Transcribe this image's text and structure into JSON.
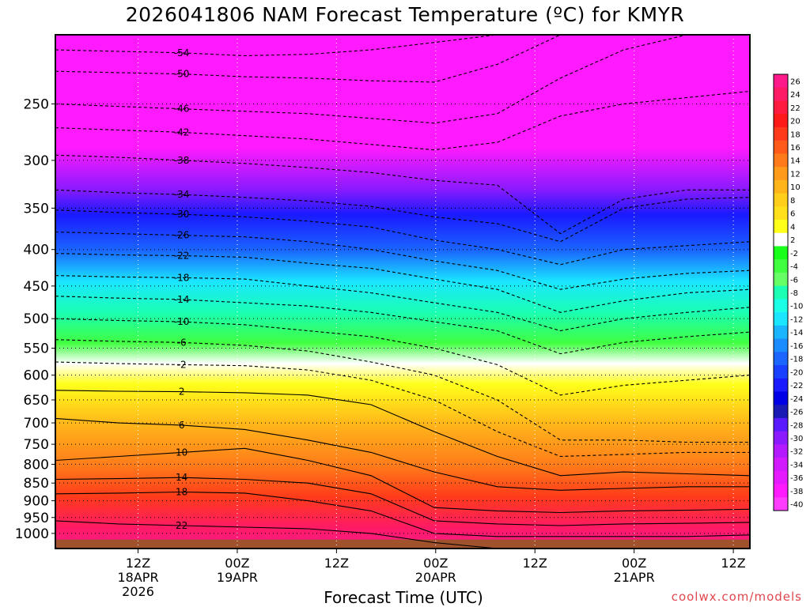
{
  "chart_data": {
    "type": "heatmap",
    "title": "2026041806 NAM Forecast Temperature (ºC) for KMYR",
    "xlabel": "Forecast Time (UTC)",
    "ylabel": "",
    "credit": "coolwx.com/models",
    "x_range_hours": [
      -4,
      80
    ],
    "y_range_hPa": [
      1050,
      200
    ],
    "y_scale": "log",
    "grid": true,
    "legend": "right",
    "y_ticks": [
      250,
      300,
      350,
      400,
      450,
      500,
      550,
      600,
      650,
      700,
      750,
      800,
      850,
      900,
      950,
      1000
    ],
    "x_ticks": [
      {
        "hour": 6,
        "lines": [
          "12Z",
          "18APR",
          "2026"
        ]
      },
      {
        "hour": 18,
        "lines": [
          "00Z",
          "19APR"
        ]
      },
      {
        "hour": 30,
        "lines": [
          "12Z"
        ]
      },
      {
        "hour": 42,
        "lines": [
          "00Z",
          "20APR"
        ]
      },
      {
        "hour": 54,
        "lines": [
          "12Z"
        ]
      },
      {
        "hour": 66,
        "lines": [
          "00Z",
          "21APR"
        ]
      },
      {
        "hour": 78,
        "lines": [
          "12Z"
        ]
      }
    ],
    "colorbar": {
      "levels": [
        26,
        24,
        22,
        20,
        18,
        16,
        14,
        12,
        10,
        8,
        6,
        4,
        2,
        -2,
        -4,
        -6,
        -8,
        -10,
        -12,
        -14,
        -16,
        -18,
        -20,
        -22,
        -24,
        -26,
        -28,
        -30,
        -32,
        -34,
        -36,
        -38,
        -40
      ],
      "colors": [
        "#ff1a8c",
        "#ff1a66",
        "#ff1a40",
        "#ff1a1a",
        "#ff3a1a",
        "#ff5a1a",
        "#ff7a1a",
        "#ff9a1a",
        "#ffb41a",
        "#ffce1a",
        "#ffe01a",
        "#ffff1a",
        "#ffffff",
        "#1aff1a",
        "#40ff40",
        "#66ff66",
        "#1affb4",
        "#1affe6",
        "#1ae6ff",
        "#1ab4ff",
        "#1a8cff",
        "#1a66ff",
        "#1a40ff",
        "#1a1aff",
        "#0000e6",
        "#1a1ab4",
        "#5a1aff",
        "#8c1aff",
        "#b41aff",
        "#d21aff",
        "#e61aff",
        "#ff1aff",
        "#ff3cff"
      ]
    },
    "contour_levels": [
      -54,
      -50,
      -46,
      -42,
      -38,
      -34,
      -30,
      -26,
      -22,
      -18,
      -14,
      -10,
      -6,
      -2,
      2,
      6,
      10,
      14,
      18,
      22
    ],
    "contours": [
      {
        "level": -54,
        "p": [
          210,
          211,
          212,
          214,
          213,
          210,
          205,
          200,
          200,
          200,
          200,
          200
        ]
      },
      {
        "level": -50,
        "p": [
          225,
          226,
          227,
          229,
          230,
          232,
          233,
          220,
          200,
          200,
          200,
          200
        ]
      },
      {
        "level": -46,
        "p": [
          250,
          252,
          254,
          256,
          258,
          262,
          266,
          258,
          230,
          210,
          200,
          200
        ]
      },
      {
        "level": -42,
        "p": [
          270,
          272,
          274,
          277,
          280,
          285,
          290,
          283,
          260,
          250,
          245,
          240
        ]
      },
      {
        "level": -38,
        "p": [
          295,
          297,
          300,
          303,
          307,
          312,
          320,
          325,
          380,
          340,
          330,
          330
        ]
      },
      {
        "level": -34,
        "p": [
          330,
          333,
          335,
          338,
          342,
          348,
          360,
          368,
          390,
          350,
          340,
          338
        ]
      },
      {
        "level": -30,
        "p": [
          352,
          355,
          357,
          360,
          365,
          372,
          388,
          400,
          420,
          400,
          395,
          390
        ]
      },
      {
        "level": -26,
        "p": [
          378,
          380,
          382,
          384,
          390,
          400,
          415,
          428,
          455,
          440,
          432,
          428
        ]
      },
      {
        "level": -22,
        "p": [
          405,
          407,
          408,
          410,
          418,
          425,
          440,
          455,
          490,
          472,
          460,
          455
        ]
      },
      {
        "level": -18,
        "p": [
          435,
          437,
          438,
          440,
          450,
          460,
          475,
          490,
          520,
          500,
          490,
          482
        ]
      },
      {
        "level": -14,
        "p": [
          465,
          468,
          470,
          475,
          480,
          490,
          505,
          520,
          560,
          540,
          530,
          522
        ]
      },
      {
        "level": -10,
        "p": [
          500,
          503,
          505,
          510,
          520,
          530,
          550,
          580,
          640,
          620,
          610,
          600
        ]
      },
      {
        "level": -6,
        "p": [
          535,
          538,
          540,
          545,
          555,
          575,
          600,
          650,
          740,
          740,
          745,
          745
        ]
      },
      {
        "level": -2,
        "p": [
          575,
          578,
          580,
          582,
          590,
          610,
          650,
          720,
          780,
          775,
          770,
          770
        ]
      },
      {
        "level": 2,
        "p": [
          630,
          632,
          633,
          635,
          640,
          660,
          720,
          780,
          830,
          820,
          825,
          830
        ]
      },
      {
        "level": 6,
        "p": [
          690,
          700,
          705,
          715,
          740,
          770,
          820,
          860,
          870,
          865,
          860,
          860
        ]
      },
      {
        "level": 10,
        "p": [
          790,
          780,
          770,
          760,
          790,
          830,
          920,
          930,
          935,
          930,
          928,
          925
        ]
      },
      {
        "level": 14,
        "p": [
          840,
          838,
          835,
          840,
          850,
          880,
          960,
          970,
          975,
          970,
          968,
          965
        ]
      },
      {
        "level": 18,
        "p": [
          880,
          878,
          875,
          878,
          900,
          930,
          1000,
          1010,
          1010,
          1010,
          1010,
          1005
        ]
      },
      {
        "level": 22,
        "p": [
          960,
          970,
          975,
          980,
          985,
          1000,
          1030,
          1050,
          1050,
          1050,
          1050,
          1050
        ]
      }
    ],
    "surface_hPa": 1020
  }
}
